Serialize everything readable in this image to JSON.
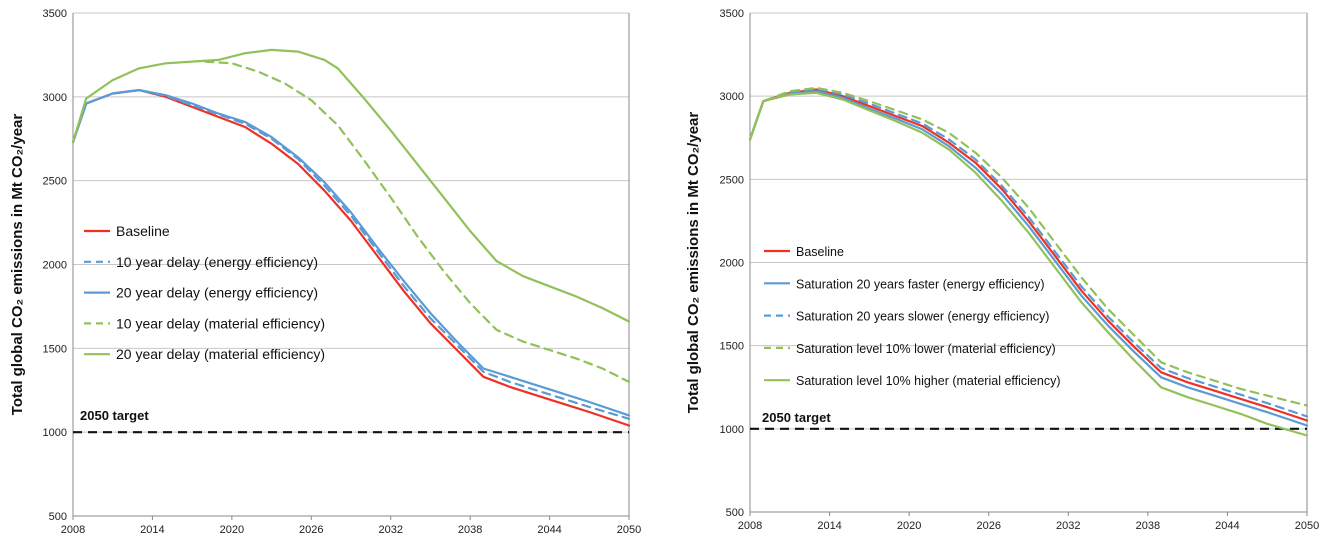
{
  "colors": {
    "baseline": "#ee3124",
    "energy": "#5b9bd5",
    "material": "#92c05a",
    "target": "#111111",
    "grid": "#c8c8c8"
  },
  "chart_data": [
    {
      "type": "line",
      "ylabel": "Total global CO₂ emissions in Mt CO₂/year",
      "ylim": [
        500,
        3500
      ],
      "yticks": [
        500,
        1000,
        1500,
        2000,
        2500,
        3000,
        3500
      ],
      "xlim": [
        2008,
        2050
      ],
      "xticks": [
        2008,
        2014,
        2020,
        2026,
        2032,
        2038,
        2044,
        2050
      ],
      "grid": "horizontal",
      "legend_position": "left-middle",
      "annotation": "2050 target",
      "target_value": 1000,
      "series": [
        {
          "name": "Baseline",
          "style": "solid",
          "color_key": "baseline",
          "x": [
            2008,
            2009,
            2011,
            2013,
            2015,
            2017,
            2019,
            2021,
            2023,
            2025,
            2027,
            2029,
            2031,
            2033,
            2035,
            2037,
            2039,
            2041,
            2043,
            2045,
            2047,
            2050
          ],
          "y": [
            2730,
            2960,
            3020,
            3040,
            3000,
            2940,
            2880,
            2820,
            2720,
            2600,
            2440,
            2260,
            2050,
            1840,
            1650,
            1490,
            1330,
            1270,
            1220,
            1170,
            1120,
            1040
          ]
        },
        {
          "name": "10 year delay (energy efficiency)",
          "style": "dashed",
          "color_key": "energy",
          "x": [
            2008,
            2009,
            2011,
            2013,
            2015,
            2017,
            2019,
            2021,
            2023,
            2025,
            2027,
            2029,
            2031,
            2033,
            2035,
            2037,
            2039,
            2041,
            2043,
            2045,
            2047,
            2050
          ],
          "y": [
            2730,
            2960,
            3020,
            3040,
            3005,
            2950,
            2895,
            2840,
            2750,
            2630,
            2470,
            2290,
            2080,
            1870,
            1680,
            1520,
            1360,
            1300,
            1250,
            1200,
            1150,
            1080
          ]
        },
        {
          "name": "20 year delay (energy efficiency)",
          "style": "solid",
          "color_key": "energy",
          "x": [
            2008,
            2009,
            2011,
            2013,
            2015,
            2017,
            2019,
            2021,
            2023,
            2025,
            2027,
            2029,
            2031,
            2033,
            2035,
            2037,
            2039,
            2041,
            2043,
            2045,
            2047,
            2050
          ],
          "y": [
            2730,
            2960,
            3020,
            3040,
            3010,
            2960,
            2900,
            2850,
            2760,
            2640,
            2490,
            2310,
            2100,
            1900,
            1710,
            1540,
            1380,
            1330,
            1280,
            1230,
            1180,
            1100
          ]
        },
        {
          "name": "10 year delay (material efficiency)",
          "style": "dashed",
          "color_key": "material",
          "x": [
            2018,
            2020,
            2022,
            2024,
            2026,
            2028,
            2030,
            2032,
            2034,
            2036,
            2038,
            2040,
            2042,
            2044,
            2046,
            2048,
            2050
          ],
          "y": [
            3210,
            3200,
            3150,
            3080,
            2980,
            2830,
            2620,
            2400,
            2170,
            1960,
            1770,
            1610,
            1540,
            1490,
            1440,
            1380,
            1300
          ]
        },
        {
          "name": "20 year delay (material efficiency)",
          "style": "solid",
          "color_key": "material",
          "x": [
            2008,
            2009,
            2011,
            2013,
            2015,
            2017,
            2019,
            2021,
            2023,
            2025,
            2027,
            2028,
            2030,
            2032,
            2034,
            2036,
            2038,
            2040,
            2042,
            2044,
            2046,
            2048,
            2050
          ],
          "y": [
            2730,
            2990,
            3100,
            3170,
            3200,
            3210,
            3220,
            3260,
            3280,
            3270,
            3220,
            3170,
            2990,
            2800,
            2600,
            2400,
            2200,
            2020,
            1930,
            1870,
            1810,
            1740,
            1660
          ]
        }
      ]
    },
    {
      "type": "line",
      "ylabel": "Total global CO₂ emissions in Mt CO₂/year",
      "ylim": [
        500,
        3500
      ],
      "yticks": [
        500,
        1000,
        1500,
        2000,
        2500,
        3000,
        3500
      ],
      "xlim": [
        2008,
        2050
      ],
      "xticks": [
        2008,
        2014,
        2020,
        2026,
        2032,
        2038,
        2044,
        2050
      ],
      "grid": "horizontal",
      "legend_position": "left-middle",
      "annotation": "2050 target",
      "target_value": 1000,
      "series": [
        {
          "name": "Baseline",
          "style": "solid",
          "color_key": "baseline",
          "x": [
            2008,
            2009,
            2011,
            2013,
            2015,
            2017,
            2019,
            2021,
            2023,
            2025,
            2027,
            2029,
            2031,
            2033,
            2035,
            2037,
            2039,
            2041,
            2043,
            2045,
            2047,
            2050
          ],
          "y": [
            2740,
            2970,
            3020,
            3040,
            3000,
            2940,
            2880,
            2820,
            2720,
            2600,
            2440,
            2250,
            2040,
            1830,
            1650,
            1490,
            1340,
            1280,
            1230,
            1180,
            1130,
            1050
          ]
        },
        {
          "name": "Saturation 20 years faster (energy efficiency)",
          "style": "solid",
          "color_key": "energy",
          "x": [
            2008,
            2009,
            2011,
            2013,
            2015,
            2017,
            2019,
            2021,
            2023,
            2025,
            2027,
            2029,
            2031,
            2033,
            2035,
            2037,
            2039,
            2041,
            2043,
            2045,
            2047,
            2050
          ],
          "y": [
            2740,
            2970,
            3015,
            3030,
            2990,
            2925,
            2865,
            2800,
            2700,
            2570,
            2410,
            2220,
            2010,
            1800,
            1620,
            1460,
            1310,
            1250,
            1200,
            1150,
            1100,
            1020
          ]
        },
        {
          "name": "Saturation 20 years slower (energy efficiency)",
          "style": "dashed",
          "color_key": "energy",
          "x": [
            2008,
            2009,
            2011,
            2013,
            2015,
            2017,
            2019,
            2021,
            2023,
            2025,
            2027,
            2029,
            2031,
            2033,
            2035,
            2037,
            2039,
            2041,
            2043,
            2045,
            2047,
            2050
          ],
          "y": [
            2740,
            2970,
            3025,
            3045,
            3010,
            2955,
            2895,
            2835,
            2740,
            2620,
            2460,
            2275,
            2065,
            1855,
            1675,
            1515,
            1365,
            1305,
            1255,
            1205,
            1155,
            1075
          ]
        },
        {
          "name": "Saturation level 10% lower (material efficiency)",
          "style": "dashed",
          "color_key": "material",
          "x": [
            2008,
            2009,
            2011,
            2013,
            2015,
            2017,
            2019,
            2021,
            2023,
            2025,
            2027,
            2029,
            2031,
            2033,
            2035,
            2037,
            2039,
            2041,
            2043,
            2045,
            2047,
            2050
          ],
          "y": [
            2740,
            2970,
            3030,
            3050,
            3020,
            2970,
            2915,
            2860,
            2780,
            2660,
            2510,
            2330,
            2120,
            1910,
            1720,
            1560,
            1400,
            1340,
            1290,
            1240,
            1200,
            1140
          ]
        },
        {
          "name": "Saturation level 10% higher (material efficiency)",
          "style": "solid",
          "color_key": "material",
          "x": [
            2008,
            2009,
            2011,
            2013,
            2015,
            2017,
            2019,
            2021,
            2023,
            2025,
            2027,
            2029,
            2031,
            2033,
            2035,
            2037,
            2039,
            2041,
            2043,
            2045,
            2047,
            2050
          ],
          "y": [
            2740,
            2970,
            3010,
            3020,
            2980,
            2915,
            2850,
            2780,
            2680,
            2540,
            2370,
            2180,
            1970,
            1760,
            1580,
            1410,
            1250,
            1190,
            1140,
            1090,
            1030,
            960
          ]
        }
      ]
    }
  ]
}
